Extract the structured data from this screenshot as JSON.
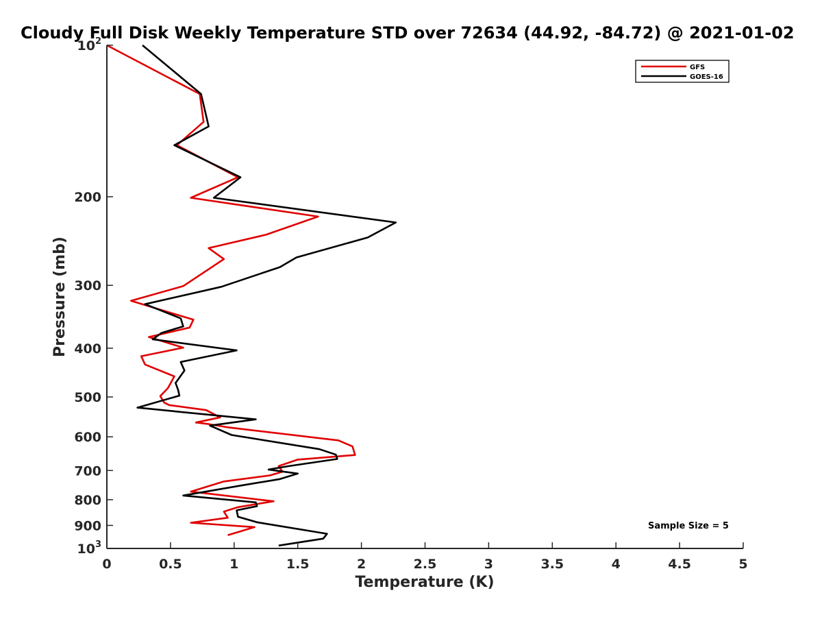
{
  "chart_data": {
    "type": "line",
    "title": "Cloudy Full Disk Weekly Temperature STD over 72634 (44.92, -84.72) @ 2021-01-02",
    "xlabel": "Temperature (K)",
    "ylabel": "Pressure (mb)",
    "xlim": [
      0,
      5
    ],
    "ylim": [
      1000,
      100
    ],
    "y_scale": "log",
    "y_reversed": true,
    "grid": false,
    "legend_position": "top-right",
    "x_ticks": [
      "0",
      "0.5",
      "1",
      "1.5",
      "2",
      "2.5",
      "3",
      "3.5",
      "4",
      "4.5",
      "5"
    ],
    "x_tick_values": [
      0,
      0.5,
      1,
      1.5,
      2,
      2.5,
      3,
      3.5,
      4,
      4.5,
      5
    ],
    "y_ticks": [
      {
        "value": 100,
        "base": "10",
        "exp": "2"
      },
      {
        "value": 200,
        "base": "200",
        "exp": ""
      },
      {
        "value": 300,
        "base": "300",
        "exp": ""
      },
      {
        "value": 400,
        "base": "400",
        "exp": ""
      },
      {
        "value": 500,
        "base": "500",
        "exp": ""
      },
      {
        "value": 600,
        "base": "600",
        "exp": ""
      },
      {
        "value": 700,
        "base": "700",
        "exp": ""
      },
      {
        "value": 800,
        "base": "800",
        "exp": ""
      },
      {
        "value": 900,
        "base": "900",
        "exp": ""
      },
      {
        "value": 1000,
        "base": "10",
        "exp": "3"
      }
    ],
    "annotation": "Sample Size = 5",
    "series": [
      {
        "name": "GFS",
        "color": "#e00000",
        "points": [
          [
            0.0,
            100
          ],
          [
            0.73,
            125
          ],
          [
            0.76,
            142
          ],
          [
            0.55,
            158
          ],
          [
            1.03,
            183
          ],
          [
            0.66,
            201
          ],
          [
            1.66,
            219
          ],
          [
            1.25,
            238
          ],
          [
            0.8,
            253
          ],
          [
            0.92,
            266
          ],
          [
            0.6,
            301
          ],
          [
            0.19,
            322
          ],
          [
            0.68,
            351
          ],
          [
            0.65,
            364
          ],
          [
            0.33,
            380
          ],
          [
            0.6,
            399
          ],
          [
            0.27,
            415
          ],
          [
            0.3,
            431
          ],
          [
            0.53,
            455
          ],
          [
            0.48,
            480
          ],
          [
            0.42,
            498
          ],
          [
            0.45,
            513
          ],
          [
            0.49,
            519
          ],
          [
            0.78,
            531
          ],
          [
            0.89,
            549
          ],
          [
            0.7,
            562
          ],
          [
            0.8,
            566
          ],
          [
            0.96,
            575
          ],
          [
            1.82,
            610
          ],
          [
            1.93,
            627
          ],
          [
            1.95,
            652
          ],
          [
            1.5,
            666
          ],
          [
            1.35,
            686
          ],
          [
            1.38,
            704
          ],
          [
            1.28,
            716
          ],
          [
            0.92,
            736
          ],
          [
            0.66,
            771
          ],
          [
            1.31,
            806
          ],
          [
            1.03,
            828
          ],
          [
            0.92,
            845
          ],
          [
            0.95,
            869
          ],
          [
            0.66,
            889
          ],
          [
            1.16,
            907
          ],
          [
            0.95,
            941
          ]
        ]
      },
      {
        "name": "GOES-16",
        "color": "#000000",
        "points": [
          [
            0.28,
            100
          ],
          [
            0.74,
            125
          ],
          [
            0.8,
            145
          ],
          [
            0.53,
            158
          ],
          [
            1.05,
            183
          ],
          [
            0.84,
            201
          ],
          [
            2.27,
            225
          ],
          [
            2.05,
            241
          ],
          [
            1.49,
            264
          ],
          [
            1.36,
            276
          ],
          [
            0.9,
            302
          ],
          [
            0.3,
            327
          ],
          [
            0.58,
            349
          ],
          [
            0.6,
            362
          ],
          [
            0.43,
            373
          ],
          [
            0.36,
            384
          ],
          [
            1.02,
            404
          ],
          [
            0.58,
            426
          ],
          [
            0.61,
            443
          ],
          [
            0.54,
            469
          ],
          [
            0.56,
            484
          ],
          [
            0.57,
            497
          ],
          [
            0.24,
            525
          ],
          [
            1.17,
            554
          ],
          [
            0.81,
            570
          ],
          [
            0.98,
            595
          ],
          [
            1.67,
            635
          ],
          [
            1.8,
            651
          ],
          [
            1.81,
            664
          ],
          [
            1.43,
            686
          ],
          [
            1.27,
            697
          ],
          [
            1.5,
            710
          ],
          [
            1.36,
            728
          ],
          [
            1.04,
            751
          ],
          [
            0.6,
            785
          ],
          [
            1.17,
            810
          ],
          [
            1.18,
            824
          ],
          [
            1.02,
            840
          ],
          [
            1.03,
            865
          ],
          [
            1.18,
            887
          ],
          [
            1.73,
            935
          ],
          [
            1.7,
            956
          ],
          [
            1.35,
            987
          ]
        ]
      }
    ]
  }
}
